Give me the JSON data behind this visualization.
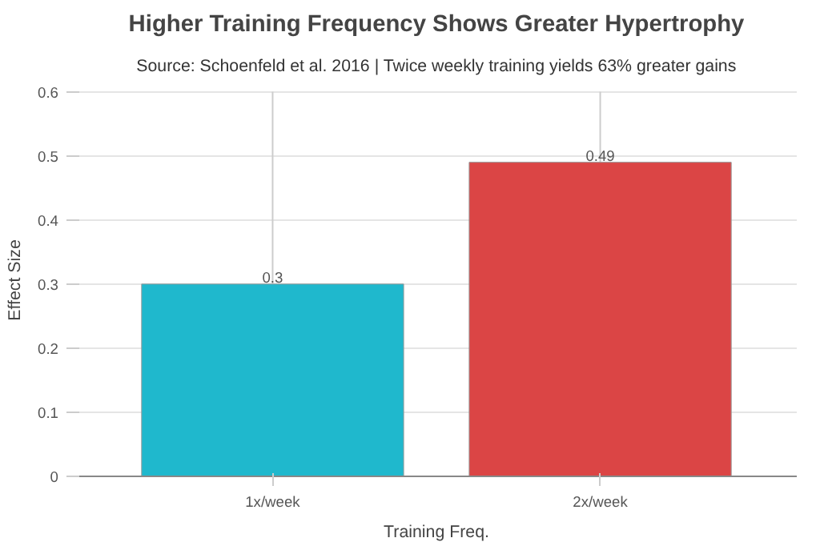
{
  "chart_data": {
    "type": "bar",
    "title": "Higher Training Frequency Shows Greater Hypertrophy",
    "subtitle": "Source: Schoenfeld et al. 2016 | Twice weekly training yields 63% greater gains",
    "xlabel": "Training Freq.",
    "ylabel": "Effect Size",
    "categories": [
      "1x/week",
      "2x/week"
    ],
    "values": [
      0.3,
      0.49
    ],
    "colors": [
      "#1fb8cd",
      "#db4545"
    ],
    "errors": [
      [
        0.3,
        0.6
      ],
      [
        0.49,
        0.6
      ]
    ],
    "data_labels": true,
    "ylim": [
      0,
      0.6
    ],
    "yticks": [
      0,
      0.1,
      0.2,
      0.3,
      0.4,
      0.5,
      0.6
    ],
    "grid": "y"
  }
}
